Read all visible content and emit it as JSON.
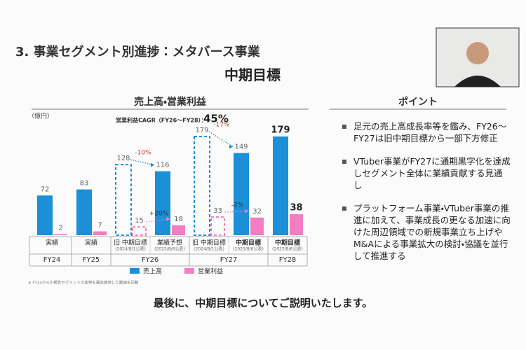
{
  "slide": {
    "title": "3. 事業セグメント別進捗：メタバース事業",
    "subtitle": "中期目標",
    "section_left": "売上高・営業利益",
    "section_right": "ポイント",
    "points": [
      "足元の売上高成長率等を鑑み、FY26～FY27は旧中期目標から一部下方修正",
      "VTuber事業がFY27に通期黒字化を達成しセグメント全体に業績貢献する見通し",
      "プラットフォーム事業・VTuber事業の推進に加えて、事業成長の更なる加速に向けた周辺領域での新規事業立ち上げやM&Aによる事業拡大の検討・協議を並行して推進する"
    ],
    "caption": "最後に、中期目標についてご説明いたします。"
  },
  "chart_data": {
    "type": "bar",
    "unit": "（億円）",
    "cagr": {
      "label": "営業利益CAGR（FY26～FY28）：",
      "value": 45,
      "value_label": "45%"
    },
    "categories": [
      "実績",
      "実績",
      "旧 中期目標",
      "業績予想",
      "旧 中期目標",
      "中期目標",
      "中期目標"
    ],
    "category_notes": [
      null,
      null,
      "(2024/8/1公表)",
      "(2025/8/6公表)",
      "(2024/8/1公表)",
      "(2025/8/6公表)",
      "(2025/8/6公表)"
    ],
    "groups": [
      "FY24",
      "FY25",
      "FY26",
      "FY26",
      "FY27",
      "FY27",
      "FY28"
    ],
    "outlined": [
      false,
      false,
      true,
      false,
      true,
      false,
      false
    ],
    "series": [
      {
        "name": "売上高",
        "color": "#1b8fd8",
        "values": [
          72,
          83,
          128,
          116,
          179,
          149,
          179
        ]
      },
      {
        "name": "営業利益",
        "color": "#f27dc0",
        "values": [
          2,
          7,
          15,
          18,
          33,
          32,
          38
        ]
      }
    ],
    "annotations": [
      {
        "value": -10,
        "value_label": "-10%",
        "from": 2,
        "to": 3,
        "series": 0,
        "color": "#d9342b"
      },
      {
        "value": -17,
        "value_label": "-17%",
        "from": 4,
        "to": 5,
        "series": 0,
        "color": "#d9342b"
      },
      {
        "value": 20,
        "value_label": "+20%",
        "from": 2,
        "to": 3,
        "series": 1,
        "color": "#333333"
      },
      {
        "value": -2,
        "value_label": "-2%",
        "from": 4,
        "to": 5,
        "series": 1,
        "color": "#333333"
      }
    ],
    "footnote": "※ FY24からの報告セグメントの変更を遡及適用した数値を記載"
  }
}
